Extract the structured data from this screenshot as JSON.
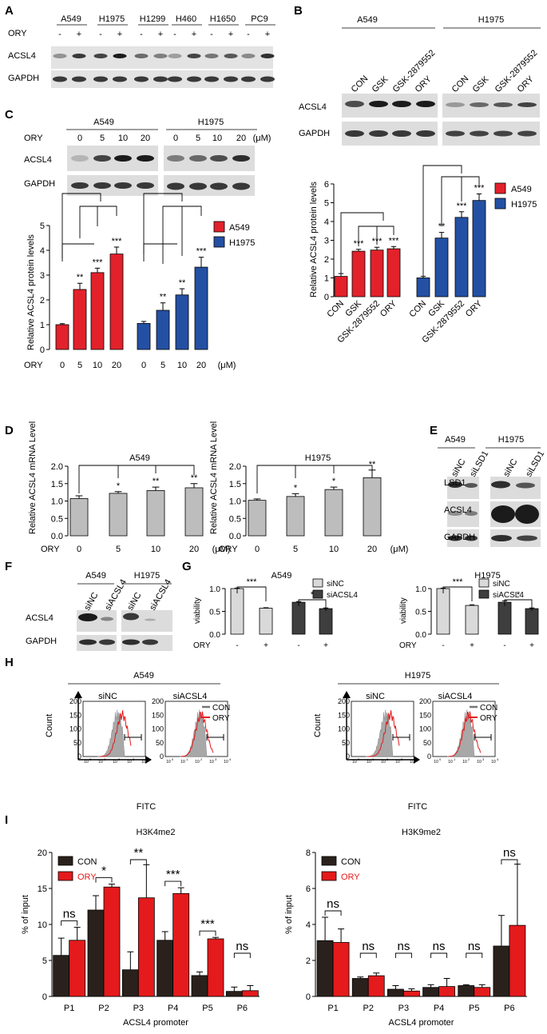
{
  "colors": {
    "red": "#e2212b",
    "blue": "#2450a4",
    "light_gray": "#d9d9d9",
    "dark_gray": "#3e3e3e",
    "bar_gray": "#bdbdbd",
    "dark_brown": "#2a211c",
    "fill_red": "#e41a1c"
  },
  "panels": {
    "A": {
      "letter": "A",
      "ory_label": "ORY",
      "lines": [
        "A549",
        "H1975",
        "H1299",
        "H460",
        "H1650",
        "PC9"
      ],
      "signs": [
        "-",
        "+"
      ],
      "rows": [
        "ACSL4",
        "GAPDH"
      ]
    },
    "B": {
      "letter": "B",
      "groups": [
        "A549",
        "H1975"
      ],
      "lanes": [
        "CON",
        "GSK",
        "GSK-2879552",
        "ORY"
      ],
      "rows": [
        "ACSL4",
        "GAPDH"
      ],
      "chart_data": {
        "type": "bar",
        "ylabel": "Relative ACSL4 protein levels",
        "ylim": [
          0,
          6
        ],
        "yticks": [
          "0",
          "1",
          "2",
          "3",
          "4",
          "5",
          "6"
        ],
        "categories": [
          "CON",
          "GSK",
          "GSK-2879552",
          "ORY"
        ],
        "series": [
          {
            "name": "A549",
            "values": [
              1.08,
              2.42,
              2.48,
              2.55
            ],
            "errors": [
              0.15,
              0.1,
              0.15,
              0.12
            ],
            "sig": [
              "",
              "***",
              "***",
              "***"
            ]
          },
          {
            "name": "H1975",
            "values": [
              1.0,
              3.12,
              4.22,
              5.12
            ],
            "errors": [
              0.08,
              0.3,
              0.3,
              0.35
            ],
            "sig": [
              "",
              "**",
              "***",
              "***"
            ]
          }
        ]
      }
    },
    "C": {
      "letter": "C",
      "groups": [
        "A549",
        "H1975"
      ],
      "ory_label": "ORY",
      "doses": [
        "0",
        "5",
        "10",
        "20"
      ],
      "unit": "(μM)",
      "rows": [
        "ACSL4",
        "GAPDH"
      ],
      "chart_data": {
        "type": "bar",
        "ylabel": "Relative ACSL4 protein levels",
        "xlabel": "ORY",
        "ylim": [
          0,
          5
        ],
        "yticks": [
          "0",
          "1",
          "2",
          "3",
          "4",
          "5"
        ],
        "categories": [
          "0",
          "5",
          "10",
          "20"
        ],
        "unit": "(μM)",
        "series": [
          {
            "name": "A549",
            "values": [
              1.0,
              2.42,
              3.1,
              3.85
            ],
            "errors": [
              0.04,
              0.25,
              0.18,
              0.28
            ],
            "sig": [
              "",
              "**",
              "***",
              "***"
            ]
          },
          {
            "name": "H1975",
            "values": [
              1.05,
              1.58,
              2.2,
              3.32
            ],
            "errors": [
              0.08,
              0.3,
              0.25,
              0.4
            ],
            "sig": [
              "",
              "**",
              "**",
              "***"
            ]
          }
        ]
      }
    },
    "D": {
      "letter": "D",
      "chart_data": [
        {
          "type": "bar",
          "title": "A549",
          "ylabel": "Relative ACSL4 mRNA Level",
          "xlabel": "ORY",
          "unit": "(μM)",
          "ylim": [
            0,
            2.0
          ],
          "yticks": [
            "0.0",
            "0.5",
            "1.0",
            "1.5",
            "2.0"
          ],
          "categories": [
            "0",
            "5",
            "10",
            "20"
          ],
          "values": [
            1.07,
            1.22,
            1.3,
            1.38
          ],
          "errors": [
            0.08,
            0.05,
            0.1,
            0.12
          ],
          "sig": [
            "",
            "*",
            "**",
            "**"
          ]
        },
        {
          "type": "bar",
          "title": "H1975",
          "ylabel": "Relative ACSL4 mRNA Level",
          "xlabel": "ORY",
          "unit": "(μM)",
          "ylim": [
            0,
            2.0
          ],
          "yticks": [
            "0.0",
            "0.5",
            "1.0",
            "1.5",
            "2.0"
          ],
          "categories": [
            "0",
            "5",
            "10",
            "20"
          ],
          "values": [
            1.02,
            1.13,
            1.33,
            1.67
          ],
          "errors": [
            0.04,
            0.08,
            0.07,
            0.22
          ],
          "sig": [
            "",
            "*",
            "*",
            "**"
          ]
        }
      ]
    },
    "E": {
      "letter": "E",
      "groups": [
        "A549",
        "H1975"
      ],
      "lanes": [
        "siNC",
        "siLSD1"
      ],
      "rows": [
        "LSD1",
        "ACSL4",
        "GAPDH"
      ]
    },
    "F": {
      "letter": "F",
      "groups": [
        "A549",
        "H1975"
      ],
      "lanes": [
        "siNC",
        "siACSL4"
      ],
      "rows": [
        "ACSL4",
        "GAPDH"
      ]
    },
    "G": {
      "letter": "G",
      "chart_data": [
        {
          "type": "bar",
          "title": "A549",
          "ylabel": "viability",
          "xlabel": "ORY",
          "ylim": [
            0,
            1.0
          ],
          "yticks": [
            "0.0",
            "0.5",
            "1.0"
          ],
          "categories": [
            "-",
            "+",
            "-",
            "+"
          ],
          "legend": [
            "siNC",
            "siACSL4"
          ],
          "values": [
            1.0,
            0.57,
            0.7,
            0.56
          ],
          "errors": [
            0.01,
            0.01,
            0.015,
            0.015
          ],
          "sig": [
            "***",
            "*"
          ]
        },
        {
          "type": "bar",
          "title": "H1975",
          "ylabel": "viability",
          "xlabel": "ORY",
          "ylim": [
            0,
            1.0
          ],
          "yticks": [
            "0.0",
            "0.5",
            "1.0"
          ],
          "categories": [
            "-",
            "+",
            "-",
            "+"
          ],
          "legend": [
            "siNC",
            "siACSL4"
          ],
          "values": [
            1.0,
            0.63,
            0.7,
            0.56
          ],
          "errors": [
            0.01,
            0.015,
            0.03,
            0.015
          ],
          "sig": [
            "***",
            "*"
          ]
        }
      ]
    },
    "H": {
      "letter": "H",
      "groups": [
        "A549",
        "H1975"
      ],
      "subs": [
        "siNC",
        "siACSL4"
      ],
      "ylabel": "Count",
      "xlabel": "FITC",
      "yticks": [
        "0",
        "50",
        "100",
        "150",
        "200"
      ],
      "xticks": [
        "10",
        "10",
        "10",
        "10",
        "10"
      ],
      "xexp": [
        "0",
        "1",
        "2",
        "3",
        "4"
      ],
      "legend": [
        "CON",
        "ORY"
      ]
    },
    "I": {
      "letter": "I",
      "chart_data": [
        {
          "type": "bar",
          "title": "H3K4me2",
          "ylabel": "% of input",
          "xlabel": "ACSL4 promoter",
          "ylim": [
            0,
            20
          ],
          "yticks": [
            "0",
            "5",
            "10",
            "15",
            "20"
          ],
          "categories": [
            "P1",
            "P2",
            "P3",
            "P4",
            "P5",
            "P6"
          ],
          "legend": [
            "CON",
            "ORY"
          ],
          "series": [
            {
              "name": "CON",
              "values": [
                5.7,
                12.0,
                3.7,
                7.8,
                2.9,
                0.7
              ],
              "errors": [
                2.4,
                2.0,
                2.5,
                1.2,
                0.5,
                0.6
              ]
            },
            {
              "name": "ORY",
              "values": [
                7.8,
                15.2,
                13.7,
                14.3,
                8.0,
                0.8
              ],
              "errors": [
                1.8,
                0.4,
                4.6,
                0.8,
                0.2,
                0.7
              ]
            }
          ],
          "sig": [
            "ns",
            "*",
            "**",
            "***",
            "***",
            "ns"
          ]
        },
        {
          "type": "bar",
          "title": "H3K9me2",
          "ylabel": "% of input",
          "xlabel": "ACSL4 promoter",
          "ylim": [
            0,
            8
          ],
          "yticks": [
            "0",
            "2",
            "4",
            "6",
            "8"
          ],
          "categories": [
            "P1",
            "P2",
            "P3",
            "P4",
            "P5",
            "P6"
          ],
          "legend": [
            "CON",
            "ORY"
          ],
          "series": [
            {
              "name": "CON",
              "values": [
                3.1,
                1.0,
                0.4,
                0.5,
                0.6,
                2.8
              ],
              "errors": [
                1.3,
                0.08,
                0.2,
                0.15,
                0.05,
                1.7
              ]
            },
            {
              "name": "ORY",
              "values": [
                3.0,
                1.15,
                0.3,
                0.55,
                0.5,
                3.95
              ],
              "errors": [
                0.75,
                0.15,
                0.12,
                0.45,
                0.15,
                3.4
              ]
            }
          ],
          "sig": [
            "ns",
            "ns",
            "ns",
            "ns",
            "ns",
            "ns"
          ]
        }
      ]
    }
  }
}
